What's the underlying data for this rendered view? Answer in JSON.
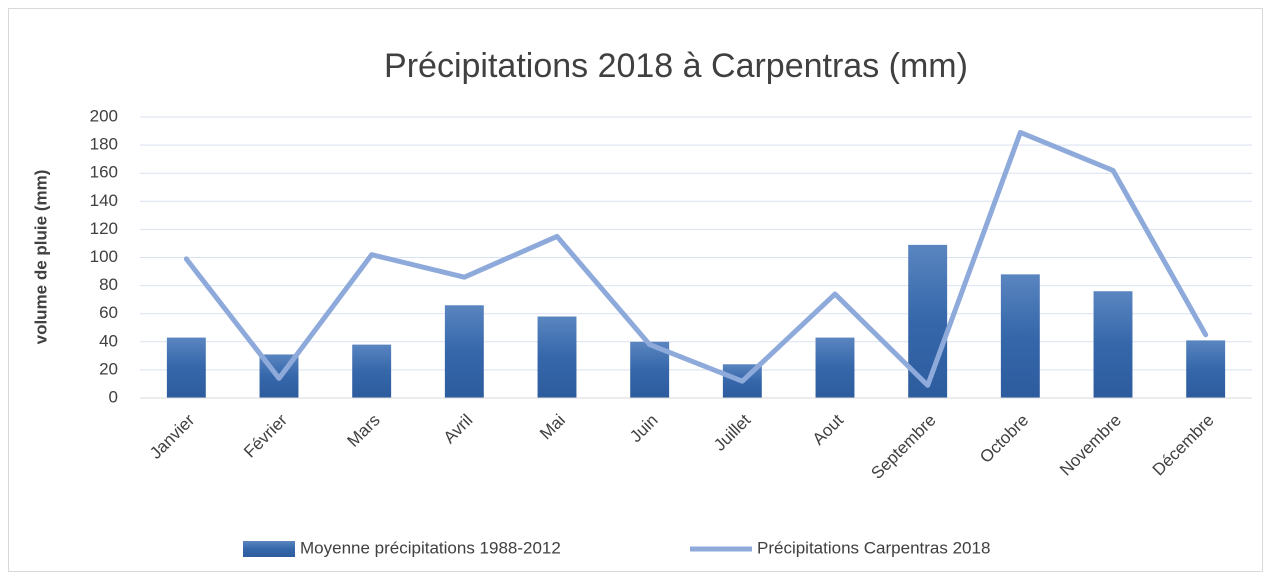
{
  "chart_data": {
    "type": "combo",
    "title": "Précipitations 2018 à Carpentras (mm)",
    "y_label": "volume de pluie (mm)",
    "categories": [
      "Janvier",
      "Février",
      "Mars",
      "Avril",
      "Mai",
      "Juin",
      "Juillet",
      "Aout",
      "Septembre",
      "Octobre",
      "Novembre",
      "Décembre"
    ],
    "series": [
      {
        "name": "Moyenne précipitations 1988-2012",
        "type": "bar",
        "color": "#3b6cb0",
        "values": [
          43,
          31,
          38,
          66,
          58,
          40,
          24,
          43,
          109,
          88,
          76,
          41
        ]
      },
      {
        "name": "Précipitations Carpentras 2018",
        "type": "line",
        "color": "#8eaadb",
        "values": [
          99,
          14,
          102,
          86,
          115,
          38,
          12,
          74,
          9,
          189,
          162,
          45
        ]
      }
    ],
    "ylim": [
      0,
      200
    ],
    "yticks": [
      0,
      20,
      40,
      60,
      80,
      100,
      120,
      140,
      160,
      180,
      200
    ],
    "grid": true,
    "legend": "bottom"
  }
}
